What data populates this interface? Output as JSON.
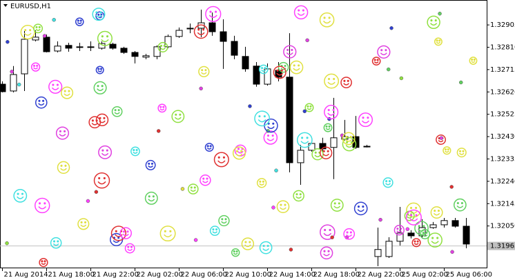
{
  "chart_data": {
    "type": "candlestick",
    "title": "EURUSD,H1",
    "categories": [
      "21 Aug 2014",
      null,
      null,
      null,
      "21 Aug 18:00",
      null,
      null,
      null,
      "21 Aug 22:00",
      null,
      null,
      null,
      "22 Aug 02:00",
      null,
      null,
      null,
      "22 Aug 06:00",
      null,
      null,
      null,
      "22 Aug 10:00",
      null,
      null,
      null,
      "22 Aug 14:00",
      null,
      null,
      null,
      "22 Aug 18:00",
      null,
      null,
      null,
      "22 Aug 22:00",
      null,
      null,
      null,
      "25 Aug 02:00",
      null,
      null,
      null,
      "25 Aug 06:00",
      null,
      null
    ],
    "open": [
      1.32653,
      1.32624,
      1.32697,
      1.32841,
      1.32853,
      1.32794,
      1.32818,
      1.32812,
      1.32812,
      1.32806,
      1.32823,
      1.32806,
      1.32788,
      1.32768,
      1.32771,
      1.32812,
      1.32856,
      1.32888,
      1.32891,
      1.32914,
      1.32876,
      1.32835,
      1.32771,
      1.3273,
      1.32653,
      1.32712,
      1.32683,
      1.32319,
      1.32372,
      1.32401,
      1.32384,
      1.32419,
      1.3243,
      1.32389,
      1.3192,
      1.3192,
      1.31985,
      1.3202,
      1.32008,
      1.32043,
      1.32055,
      1.32073,
      1.32049
    ],
    "high": [
      1.32665,
      1.3273,
      1.32879,
      1.32882,
      1.32864,
      1.32835,
      1.32829,
      1.32829,
      1.32835,
      1.32835,
      1.32829,
      1.32812,
      1.32794,
      1.32782,
      1.32818,
      1.32864,
      1.32894,
      1.32911,
      1.3297,
      1.32958,
      1.32929,
      1.32859,
      1.32812,
      1.32747,
      1.32741,
      1.32747,
      1.3287,
      1.32395,
      1.32407,
      1.32425,
      1.32595,
      1.32501,
      1.32518,
      1.32395,
      1.32043,
      1.32002,
      1.32131,
      1.32032,
      1.32079,
      1.32067,
      1.32084,
      1.32084,
      1.32084
    ],
    "low": [
      1.32618,
      1.32618,
      1.32624,
      1.32835,
      1.32788,
      1.32788,
      1.32791,
      1.32794,
      1.32794,
      1.328,
      1.328,
      1.32782,
      1.32741,
      1.32759,
      1.32759,
      1.32806,
      1.3285,
      1.3287,
      1.32853,
      1.32859,
      1.32718,
      1.32759,
      1.32706,
      1.32642,
      1.32647,
      1.32665,
      1.32278,
      1.32225,
      1.32366,
      1.32366,
      1.32249,
      1.32413,
      1.32378,
      1.32384,
      1.31879,
      1.31914,
      1.31967,
      1.31997,
      1.31997,
      1.32038,
      1.32043,
      1.32043,
      1.31955
    ],
    "close": [
      1.32621,
      1.32694,
      1.32844,
      1.32853,
      1.32791,
      1.32815,
      1.32806,
      1.32811,
      1.32811,
      1.32826,
      1.32806,
      1.32788,
      1.32771,
      1.32774,
      1.32812,
      1.32856,
      1.32882,
      1.32891,
      1.32914,
      1.32876,
      1.32835,
      1.32776,
      1.32718,
      1.32653,
      1.32718,
      1.32683,
      1.32319,
      1.32372,
      1.32401,
      1.32378,
      1.32425,
      1.3243,
      1.32384,
      1.32388,
      1.3195,
      1.31985,
      1.3202,
      1.32008,
      1.32043,
      1.32055,
      1.32073,
      1.32049,
      1.31973
    ],
    "ylim": [
      1.31873,
      1.33011
    ],
    "yticks": [
      1.32905,
      {
        "value": 1.3281,
        "label": "1.32810"
      },
      1.32715,
      {
        "value": 1.3262,
        "label": "1.32620"
      },
      1.32525,
      {
        "value": 1.3243,
        "label": "1.32430"
      },
      1.32335,
      {
        "value": 1.3224,
        "label": "1.32240"
      },
      1.32145,
      {
        "value": 1.3205,
        "label": "1.32050"
      }
    ],
    "current_price": 1.31965
  }
}
